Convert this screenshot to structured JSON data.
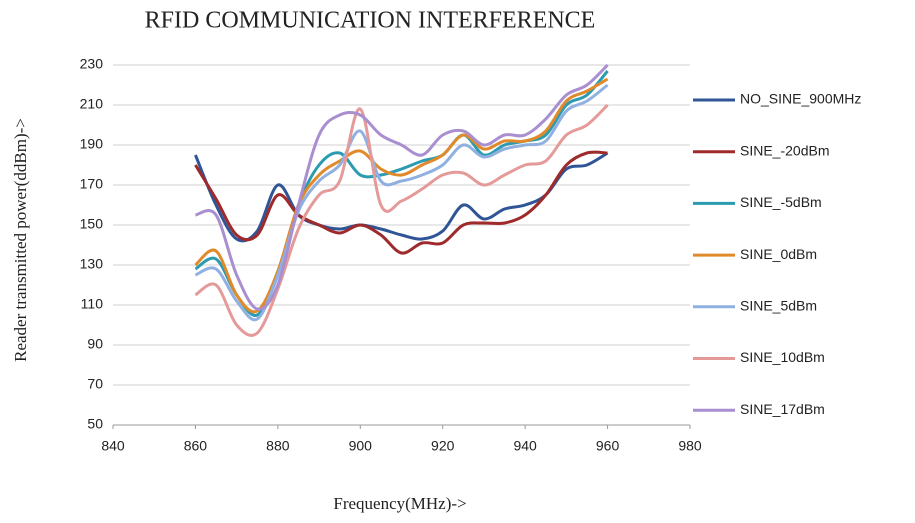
{
  "chart_data": {
    "type": "line",
    "title": "RFID COMMUNICATION INTERFERENCE",
    "x_label": "Frequency(MHz)->",
    "y_label": "Reader transmitted power(ddBm)->",
    "x": [
      860,
      865,
      870,
      875,
      880,
      885,
      890,
      895,
      900,
      905,
      910,
      915,
      920,
      925,
      930,
      935,
      940,
      945,
      950,
      955,
      960
    ],
    "xlim": [
      840,
      980
    ],
    "xticks": [
      840,
      860,
      880,
      900,
      920,
      940,
      960,
      980
    ],
    "ylim": [
      50,
      230
    ],
    "yticks": [
      50,
      70,
      90,
      110,
      130,
      150,
      170,
      190,
      210,
      230
    ],
    "grid": true,
    "legend": "right",
    "series": [
      {
        "name": "NO_SINE_900MHz",
        "color": "#2f5597",
        "values": [
          185,
          160,
          143,
          147,
          170,
          155,
          150,
          148,
          150,
          148,
          145,
          143,
          147,
          160,
          153,
          158,
          160,
          165,
          178,
          180,
          186
        ]
      },
      {
        "name": "SINE_-20dBm",
        "color": "#9e2a2b",
        "values": [
          180,
          163,
          145,
          145,
          165,
          155,
          150,
          146,
          150,
          145,
          136,
          141,
          141,
          150,
          151,
          151,
          155,
          165,
          180,
          186,
          186
        ]
      },
      {
        "name": "SINE_-5dBm",
        "color": "#2a9bb0",
        "values": [
          128,
          133,
          115,
          105,
          125,
          160,
          180,
          186,
          175,
          175,
          178,
          182,
          185,
          195,
          185,
          190,
          192,
          195,
          210,
          215,
          227
        ]
      },
      {
        "name": "SINE_0dBm",
        "color": "#e08a2c",
        "values": [
          130,
          137,
          115,
          107,
          127,
          160,
          175,
          182,
          187,
          178,
          175,
          180,
          185,
          195,
          188,
          192,
          192,
          197,
          212,
          217,
          223
        ]
      },
      {
        "name": "SINE_5dBm",
        "color": "#8fb0e0",
        "values": [
          125,
          128,
          112,
          103,
          125,
          157,
          172,
          180,
          197,
          172,
          172,
          175,
          180,
          190,
          184,
          188,
          190,
          192,
          207,
          212,
          220
        ]
      },
      {
        "name": "SINE_10dBm",
        "color": "#e59a9a",
        "values": [
          115,
          120,
          100,
          96,
          118,
          148,
          165,
          172,
          208,
          160,
          162,
          168,
          175,
          176,
          170,
          175,
          180,
          182,
          195,
          200,
          210
        ]
      },
      {
        "name": "SINE_17dBm",
        "color": "#a98fd0",
        "values": [
          155,
          155,
          125,
          108,
          120,
          160,
          195,
          205,
          205,
          195,
          190,
          185,
          195,
          197,
          190,
          195,
          195,
          203,
          215,
          220,
          230
        ]
      }
    ]
  }
}
